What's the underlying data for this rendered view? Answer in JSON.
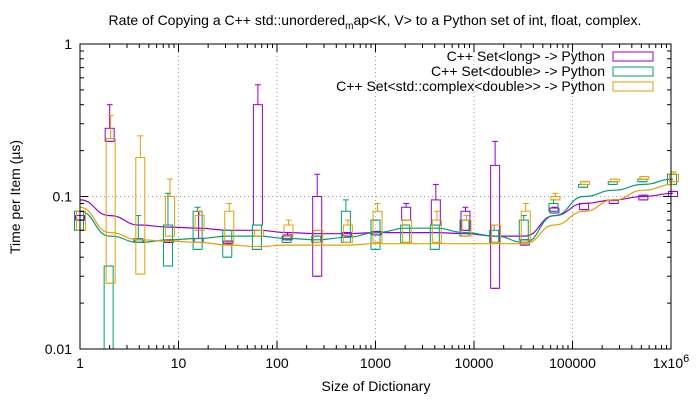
{
  "chart_data": {
    "type": "line",
    "title": "Rate of Copying a C++ std::unordered",
    "title_sub": "m",
    "title_rest": "ap<K, V> to a Python set of int, float, complex.",
    "xlabel": "Size of Dictionary",
    "ylabel": "Time per Item (µs)",
    "xscale": "log",
    "yscale": "log",
    "xlim": [
      1,
      1000000
    ],
    "ylim": [
      0.01,
      1
    ],
    "grid": true,
    "legend_position": "top-right",
    "x_ticks": [
      {
        "value": 1,
        "label": "1"
      },
      {
        "value": 10,
        "label": "10"
      },
      {
        "value": 100,
        "label": "100"
      },
      {
        "value": 1000,
        "label": "1000"
      },
      {
        "value": 10000,
        "label": "10000"
      },
      {
        "value": 100000,
        "label": "100000"
      }
    ],
    "x_last_tick": {
      "value": 1000000,
      "base": "1x10",
      "exp": "6"
    },
    "y_ticks": [
      {
        "value": 0.01,
        "label": "0.01"
      },
      {
        "value": 0.1,
        "label": "0.1"
      },
      {
        "value": 1,
        "label": "1"
      }
    ],
    "series": [
      {
        "name": "C++ Set<long> -> Python",
        "color": "#9400d3",
        "x": [
          1,
          2,
          4,
          8,
          16,
          32,
          64,
          128,
          256,
          512,
          1024,
          2048,
          4096,
          8192,
          16384,
          32768,
          65536,
          131072,
          262144,
          524288,
          1048576
        ],
        "median": [
          0.095,
          0.075,
          0.065,
          0.063,
          0.062,
          0.06,
          0.06,
          0.058,
          0.057,
          0.057,
          0.058,
          0.058,
          0.058,
          0.057,
          0.055,
          0.055,
          0.075,
          0.09,
          0.095,
          0.1,
          0.105
        ],
        "box": [
          [
            0.07,
            0.075
          ],
          [
            0.23,
            0.28
          ],
          [
            0.05,
            0.052
          ],
          [
            0.05,
            0.052
          ],
          [
            0.05,
            0.053
          ],
          [
            0.049,
            0.051
          ],
          [
            0.065,
            0.4
          ],
          [
            0.052,
            0.056
          ],
          [
            0.03,
            0.1
          ],
          [
            0.055,
            0.058
          ],
          [
            0.056,
            0.059
          ],
          [
            0.07,
            0.085
          ],
          [
            0.065,
            0.095
          ],
          [
            0.06,
            0.08
          ],
          [
            0.025,
            0.16
          ],
          [
            0.048,
            0.052
          ],
          [
            0.078,
            0.084
          ],
          [
            0.082,
            0.09
          ],
          [
            0.09,
            0.094
          ],
          [
            0.095,
            0.102
          ],
          [
            0.1,
            0.108
          ]
        ],
        "whisker": [
          [
            0.07,
            0.08
          ],
          [
            0.23,
            0.4
          ],
          [
            0.05,
            0.052
          ],
          [
            0.05,
            0.052
          ],
          [
            0.05,
            0.08
          ],
          [
            0.049,
            0.051
          ],
          [
            0.065,
            0.54
          ],
          [
            0.052,
            0.058
          ],
          [
            0.03,
            0.14
          ],
          [
            0.055,
            0.058
          ],
          [
            0.056,
            0.059
          ],
          [
            0.07,
            0.09
          ],
          [
            0.065,
            0.12
          ],
          [
            0.06,
            0.085
          ],
          [
            0.025,
            0.23
          ],
          [
            0.048,
            0.052
          ],
          [
            0.078,
            0.085
          ],
          [
            0.082,
            0.09
          ],
          [
            0.09,
            0.094
          ],
          [
            0.095,
            0.102
          ],
          [
            0.1,
            0.108
          ]
        ]
      },
      {
        "name": "C++ Set<double> -> Python",
        "color": "#009e73",
        "x": [
          1,
          2,
          4,
          8,
          16,
          32,
          64,
          128,
          256,
          512,
          1024,
          2048,
          4096,
          8192,
          16384,
          32768,
          65536,
          131072,
          262144,
          524288,
          1048576
        ],
        "median": [
          0.08,
          0.055,
          0.05,
          0.052,
          0.053,
          0.055,
          0.055,
          0.053,
          0.052,
          0.054,
          0.058,
          0.062,
          0.062,
          0.058,
          0.055,
          0.05,
          0.075,
          0.1,
          0.11,
          0.12,
          0.13
        ],
        "box": [
          [
            0.06,
            0.08
          ],
          [
            0.01,
            0.035
          ],
          [
            0.05,
            0.053
          ],
          [
            0.035,
            0.065
          ],
          [
            0.045,
            0.08
          ],
          [
            0.04,
            0.06
          ],
          [
            0.045,
            0.065
          ],
          [
            0.05,
            0.055
          ],
          [
            0.05,
            0.055
          ],
          [
            0.05,
            0.08
          ],
          [
            0.045,
            0.07
          ],
          [
            0.05,
            0.065
          ],
          [
            0.045,
            0.065
          ],
          [
            0.055,
            0.07
          ],
          [
            0.05,
            0.06
          ],
          [
            0.052,
            0.07
          ],
          [
            0.08,
            0.09
          ],
          [
            0.115,
            0.12
          ],
          [
            0.12,
            0.125
          ],
          [
            0.125,
            0.13
          ],
          [
            0.12,
            0.14
          ]
        ],
        "whisker": [
          [
            0.06,
            0.08
          ],
          [
            0.01,
            0.035
          ],
          [
            0.05,
            0.075
          ],
          [
            0.035,
            0.105
          ],
          [
            0.045,
            0.085
          ],
          [
            0.04,
            0.06
          ],
          [
            0.045,
            0.065
          ],
          [
            0.05,
            0.055
          ],
          [
            0.05,
            0.055
          ],
          [
            0.05,
            0.095
          ],
          [
            0.045,
            0.07
          ],
          [
            0.05,
            0.065
          ],
          [
            0.045,
            0.065
          ],
          [
            0.055,
            0.07
          ],
          [
            0.05,
            0.065
          ],
          [
            0.052,
            0.075
          ],
          [
            0.08,
            0.095
          ],
          [
            0.115,
            0.12
          ],
          [
            0.12,
            0.125
          ],
          [
            0.125,
            0.13
          ],
          [
            0.12,
            0.14
          ]
        ]
      },
      {
        "name": "C++ Set<std::complex<double>> -> Python",
        "color": "#e69f00",
        "x": [
          1,
          2,
          4,
          8,
          16,
          32,
          64,
          128,
          256,
          512,
          1024,
          2048,
          4096,
          8192,
          16384,
          32768,
          65536,
          131072,
          262144,
          524288,
          1048576
        ],
        "median": [
          0.085,
          0.058,
          0.052,
          0.051,
          0.05,
          0.048,
          0.047,
          0.048,
          0.048,
          0.048,
          0.049,
          0.049,
          0.049,
          0.049,
          0.049,
          0.049,
          0.065,
          0.08,
          0.095,
          0.11,
          0.12
        ],
        "box": [
          [
            0.06,
            0.08
          ],
          [
            0.027,
            0.24
          ],
          [
            0.031,
            0.18
          ],
          [
            0.055,
            0.1
          ],
          [
            0.06,
            0.075
          ],
          [
            0.05,
            0.08
          ],
          [
            0.055,
            0.06
          ],
          [
            0.055,
            0.065
          ],
          [
            0.05,
            0.06
          ],
          [
            0.05,
            0.065
          ],
          [
            0.05,
            0.08
          ],
          [
            0.05,
            0.07
          ],
          [
            0.05,
            0.07
          ],
          [
            0.055,
            0.07
          ],
          [
            0.05,
            0.065
          ],
          [
            0.05,
            0.08
          ],
          [
            0.095,
            0.1
          ],
          [
            0.12,
            0.125
          ],
          [
            0.125,
            0.13
          ],
          [
            0.13,
            0.135
          ],
          [
            0.125,
            0.14
          ]
        ],
        "whisker": [
          [
            0.06,
            0.08
          ],
          [
            0.027,
            0.34
          ],
          [
            0.031,
            0.25
          ],
          [
            0.055,
            0.13
          ],
          [
            0.06,
            0.08
          ],
          [
            0.05,
            0.09
          ],
          [
            0.055,
            0.06
          ],
          [
            0.055,
            0.07
          ],
          [
            0.05,
            0.06
          ],
          [
            0.05,
            0.07
          ],
          [
            0.05,
            0.09
          ],
          [
            0.05,
            0.07
          ],
          [
            0.05,
            0.08
          ],
          [
            0.055,
            0.075
          ],
          [
            0.05,
            0.065
          ],
          [
            0.05,
            0.09
          ],
          [
            0.095,
            0.105
          ],
          [
            0.12,
            0.125
          ],
          [
            0.125,
            0.13
          ],
          [
            0.13,
            0.135
          ],
          [
            0.125,
            0.145
          ]
        ]
      }
    ]
  }
}
